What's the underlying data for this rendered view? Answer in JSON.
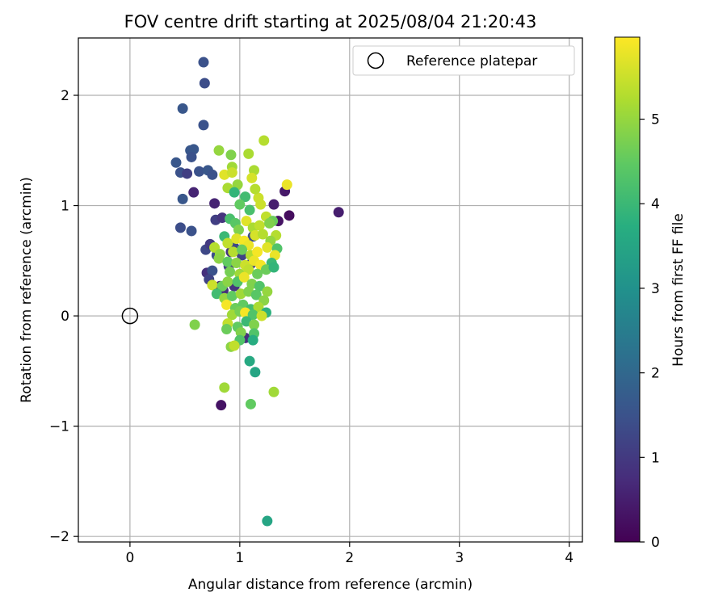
{
  "chart_data": {
    "type": "scatter",
    "title": "FOV centre drift starting at 2025/08/04 21:20:43",
    "xlabel": "Angular distance from reference (arcmin)",
    "ylabel": "Rotation from reference (arcmin)",
    "xlim": [
      -0.47,
      4.12
    ],
    "ylim": [
      -2.05,
      2.52
    ],
    "xticks": [
      0,
      1,
      2,
      3,
      4
    ],
    "yticks": [
      -2,
      -1,
      0,
      1,
      2
    ],
    "grid": true,
    "legend": {
      "placement": "top-right",
      "entries": [
        "Reference platepar"
      ]
    },
    "reference_point": {
      "label": "Reference platepar",
      "x": 0,
      "y": 0
    },
    "colorbar": {
      "label": "Hours from first FF file",
      "colormap": "viridis",
      "range": [
        0,
        5.97
      ],
      "ticks": [
        0,
        1,
        2,
        3,
        4,
        5
      ]
    },
    "series": [
      {
        "name": "",
        "points": [
          [
            0.67,
            2.3,
            1.5
          ],
          [
            0.68,
            2.11,
            1.4
          ],
          [
            0.48,
            1.88,
            1.6
          ],
          [
            0.67,
            1.73,
            1.5
          ],
          [
            0.55,
            1.5,
            1.6
          ],
          [
            0.58,
            1.51,
            1.6
          ],
          [
            0.56,
            1.44,
            1.5
          ],
          [
            0.42,
            1.39,
            1.6
          ],
          [
            0.46,
            1.3,
            1.5
          ],
          [
            0.52,
            1.29,
            1.1
          ],
          [
            0.63,
            1.31,
            1.5
          ],
          [
            0.71,
            1.32,
            1.6
          ],
          [
            0.75,
            1.28,
            1.5
          ],
          [
            0.58,
            1.12,
            0.6
          ],
          [
            0.48,
            1.06,
            1.6
          ],
          [
            0.77,
            1.02,
            0.6
          ],
          [
            0.46,
            0.8,
            1.4
          ],
          [
            0.56,
            0.77,
            1.5
          ],
          [
            0.78,
            0.87,
            1.1
          ],
          [
            0.84,
            0.89,
            0.9
          ],
          [
            0.69,
            0.6,
            1.3
          ],
          [
            0.73,
            0.65,
            1.0
          ],
          [
            0.79,
            0.55,
            1.4
          ],
          [
            0.7,
            0.39,
            0.8
          ],
          [
            0.75,
            0.41,
            1.5
          ],
          [
            0.72,
            0.33,
            1.2
          ],
          [
            0.82,
            0.27,
            0.6
          ],
          [
            0.85,
            0.23,
            0.8
          ],
          [
            0.9,
            0.45,
            1.1
          ],
          [
            0.95,
            0.62,
            1.3
          ],
          [
            0.92,
            0.58,
            0.9
          ],
          [
            1.02,
            0.55,
            1.2
          ],
          [
            1.12,
            0.72,
            1.4
          ],
          [
            1.31,
            1.01,
            0.5
          ],
          [
            1.41,
            1.13,
            0.4
          ],
          [
            1.45,
            0.91,
            0.2
          ],
          [
            1.35,
            0.86,
            0.3
          ],
          [
            1.9,
            0.94,
            0.5
          ],
          [
            0.83,
            -0.81,
            0.3
          ],
          [
            1.05,
            -0.2,
            0.8
          ],
          [
            0.95,
            0.27,
            0.9
          ],
          [
            1.1,
            0.47,
            1.2
          ],
          [
            0.81,
            1.5,
            5.0
          ],
          [
            0.92,
            1.46,
            4.8
          ],
          [
            1.08,
            1.47,
            5.2
          ],
          [
            0.93,
            1.35,
            5.1
          ],
          [
            1.13,
            1.32,
            5.2
          ],
          [
            1.22,
            1.59,
            5.3
          ],
          [
            0.86,
            1.28,
            5.7
          ],
          [
            0.93,
            1.3,
            5.5
          ],
          [
            0.89,
            1.16,
            5.2
          ],
          [
            0.98,
            1.19,
            5.0
          ],
          [
            1.11,
            1.25,
            5.6
          ],
          [
            0.95,
            1.12,
            3.9
          ],
          [
            1.05,
            1.08,
            4.1
          ],
          [
            1.17,
            1.07,
            5.5
          ],
          [
            1.43,
            1.19,
            5.8
          ],
          [
            1.14,
            1.15,
            5.3
          ],
          [
            1.0,
            1.01,
            4.5
          ],
          [
            1.09,
            0.96,
            4.2
          ],
          [
            1.19,
            1.01,
            5.5
          ],
          [
            1.24,
            0.9,
            5.4
          ],
          [
            1.3,
            0.86,
            4.6
          ],
          [
            0.91,
            0.88,
            4.2
          ],
          [
            0.96,
            0.84,
            4.4
          ],
          [
            1.06,
            0.86,
            5.7
          ],
          [
            0.99,
            0.78,
            4.8
          ],
          [
            1.12,
            0.8,
            5.2
          ],
          [
            1.18,
            0.82,
            5.4
          ],
          [
            1.27,
            0.84,
            4.8
          ],
          [
            1.33,
            0.73,
            5.3
          ],
          [
            0.86,
            0.72,
            4.0
          ],
          [
            0.89,
            0.66,
            5.4
          ],
          [
            0.97,
            0.7,
            5.7
          ],
          [
            1.04,
            0.68,
            5.9
          ],
          [
            1.08,
            0.64,
            5.8
          ],
          [
            1.14,
            0.73,
            5.6
          ],
          [
            1.21,
            0.74,
            5.3
          ],
          [
            1.28,
            0.68,
            5.0
          ],
          [
            0.77,
            0.62,
            5.3
          ],
          [
            0.82,
            0.56,
            5.0
          ],
          [
            0.94,
            0.58,
            5.3
          ],
          [
            1.02,
            0.6,
            4.6
          ],
          [
            1.1,
            0.55,
            5.3
          ],
          [
            1.16,
            0.58,
            5.9
          ],
          [
            1.25,
            0.62,
            5.7
          ],
          [
            1.34,
            0.61,
            4.3
          ],
          [
            1.32,
            0.55,
            5.8
          ],
          [
            0.81,
            0.52,
            4.9
          ],
          [
            0.89,
            0.49,
            4.5
          ],
          [
            0.97,
            0.48,
            4.9
          ],
          [
            1.05,
            0.46,
            5.5
          ],
          [
            1.13,
            0.5,
            5.8
          ],
          [
            1.19,
            0.46,
            5.9
          ],
          [
            1.29,
            0.48,
            4.0
          ],
          [
            0.91,
            0.4,
            4.7
          ],
          [
            1.0,
            0.38,
            5.1
          ],
          [
            1.08,
            0.42,
            5.4
          ],
          [
            1.16,
            0.38,
            4.6
          ],
          [
            1.24,
            0.42,
            4.6
          ],
          [
            1.31,
            0.44,
            3.9
          ],
          [
            0.75,
            0.28,
            5.5
          ],
          [
            0.84,
            0.27,
            4.6
          ],
          [
            0.89,
            0.31,
            4.9
          ],
          [
            0.98,
            0.31,
            4.3
          ],
          [
            1.04,
            0.35,
            5.8
          ],
          [
            1.11,
            0.29,
            4.8
          ],
          [
            1.18,
            0.27,
            4.3
          ],
          [
            1.25,
            0.22,
            5.0
          ],
          [
            0.79,
            0.2,
            4.1
          ],
          [
            0.86,
            0.16,
            5.0
          ],
          [
            0.93,
            0.18,
            4.5
          ],
          [
            1.01,
            0.2,
            5.1
          ],
          [
            1.08,
            0.22,
            4.8
          ],
          [
            1.15,
            0.19,
            4.4
          ],
          [
            1.22,
            0.14,
            4.9
          ],
          [
            0.88,
            0.1,
            5.9
          ],
          [
            0.96,
            0.07,
            4.6
          ],
          [
            1.03,
            0.1,
            4.5
          ],
          [
            1.1,
            0.06,
            4.1
          ],
          [
            1.17,
            0.08,
            5.2
          ],
          [
            1.24,
            0.03,
            3.8
          ],
          [
            0.93,
            0.01,
            5.1
          ],
          [
            1.0,
            0.04,
            4.7
          ],
          [
            1.05,
            0.03,
            5.9
          ],
          [
            1.12,
            0.01,
            4.3
          ],
          [
            1.2,
            0.0,
            5.5
          ],
          [
            0.89,
            -0.07,
            5.4
          ],
          [
            0.98,
            -0.1,
            4.5
          ],
          [
            1.06,
            -0.05,
            4.0
          ],
          [
            1.13,
            -0.08,
            4.8
          ],
          [
            0.88,
            -0.12,
            4.6
          ],
          [
            1.01,
            -0.15,
            4.8
          ],
          [
            1.13,
            -0.16,
            4.3
          ],
          [
            1.12,
            -0.22,
            3.7
          ],
          [
            1.0,
            -0.22,
            4.3
          ],
          [
            0.92,
            -0.28,
            4.9
          ],
          [
            0.95,
            -0.27,
            5.4
          ],
          [
            0.59,
            -0.08,
            4.8
          ],
          [
            1.09,
            -0.41,
            3.6
          ],
          [
            1.14,
            -0.51,
            3.5
          ],
          [
            0.86,
            -0.65,
            5.1
          ],
          [
            1.1,
            -0.8,
            4.5
          ],
          [
            1.31,
            -0.69,
            5.1
          ],
          [
            1.25,
            -1.86,
            3.5
          ]
        ]
      }
    ]
  }
}
